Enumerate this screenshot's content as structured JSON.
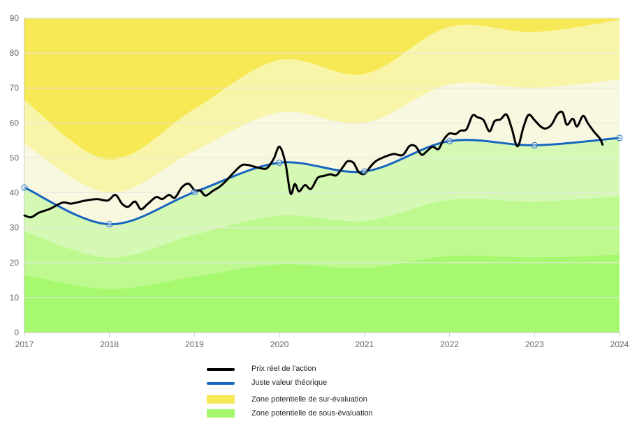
{
  "chart_data": {
    "type": "line",
    "x_ticks": [
      "2017",
      "2018",
      "2019",
      "2020",
      "2021",
      "2022",
      "2023",
      "2024"
    ],
    "y_ticks": [
      "0",
      "10",
      "20",
      "30",
      "40",
      "50",
      "60",
      "70",
      "80",
      "90"
    ],
    "xlim": [
      2017,
      2024
    ],
    "ylim": [
      0,
      90
    ],
    "grid": true,
    "legend_position": "bottom",
    "fair_value_markers": {
      "x": [
        2017,
        2018,
        2019,
        2020,
        2021,
        2022,
        2023,
        2024
      ],
      "y": [
        41.5,
        31.0,
        40.2,
        48.6,
        46.1,
        54.8,
        53.6,
        55.7
      ]
    },
    "bands": {
      "x": [
        2017,
        2018,
        2019,
        2020,
        2021,
        2022,
        2023,
        2024
      ],
      "upper_boundaries": [
        [
          41.5,
          31.0,
          40.2,
          48.6,
          46.1,
          54.8,
          53.6,
          55.7
        ],
        [
          54,
          40,
          52,
          63,
          60,
          71,
          70,
          72.5
        ],
        [
          66.5,
          49.5,
          64,
          78,
          74,
          87.5,
          86,
          89.5
        ],
        [
          90,
          90,
          90,
          90,
          90,
          90,
          90,
          90
        ]
      ],
      "lower_boundaries": [
        [
          41.5,
          31.0,
          40.2,
          48.6,
          46.1,
          54.8,
          53.6,
          55.7
        ],
        [
          29,
          21.5,
          28,
          33.5,
          32,
          38,
          37.5,
          39
        ],
        [
          16.5,
          12.5,
          16,
          19.5,
          18.5,
          22,
          21.5,
          22.3
        ],
        [
          0,
          0,
          0,
          0,
          0,
          0,
          0,
          0
        ]
      ]
    },
    "series": [
      {
        "name": "Prix réel de l'action",
        "x": [
          2017.0,
          2017.08,
          2017.17,
          2017.3,
          2017.45,
          2017.55,
          2017.7,
          2017.85,
          2017.98,
          2018.07,
          2018.15,
          2018.22,
          2018.3,
          2018.37,
          2018.45,
          2018.55,
          2018.62,
          2018.7,
          2018.77,
          2018.85,
          2018.93,
          2019.0,
          2019.07,
          2019.13,
          2019.22,
          2019.3,
          2019.38,
          2019.45,
          2019.55,
          2019.62,
          2019.7,
          2019.77,
          2019.85,
          2019.93,
          2020.0,
          2020.07,
          2020.13,
          2020.18,
          2020.23,
          2020.3,
          2020.37,
          2020.45,
          2020.52,
          2020.6,
          2020.67,
          2020.75,
          2020.8,
          2020.87,
          2020.93,
          2021.0,
          2021.07,
          2021.13,
          2021.2,
          2021.27,
          2021.35,
          2021.45,
          2021.53,
          2021.6,
          2021.67,
          2021.73,
          2021.8,
          2021.87,
          2021.93,
          2022.0,
          2022.07,
          2022.13,
          2022.2,
          2022.27,
          2022.33,
          2022.4,
          2022.47,
          2022.53,
          2022.6,
          2022.67,
          2022.73,
          2022.8,
          2022.87,
          2022.93,
          2023.0,
          2023.07,
          2023.13,
          2023.2,
          2023.27,
          2023.33,
          2023.38,
          2023.45,
          2023.5,
          2023.57,
          2023.63,
          2023.7,
          2023.77,
          2023.8
        ],
        "y": [
          33.5,
          33,
          34.3,
          35.4,
          37.2,
          36.9,
          37.7,
          38.2,
          37.8,
          39.4,
          36.8,
          36,
          37.5,
          35.3,
          36.8,
          38.8,
          38.2,
          39.4,
          38.6,
          41.5,
          42.6,
          40.8,
          40.6,
          39.2,
          40.6,
          41.8,
          43.6,
          45.5,
          47.8,
          48,
          47.5,
          47.1,
          47,
          49.6,
          53.2,
          48.5,
          39.8,
          42.5,
          40.4,
          42.2,
          41.1,
          44.3,
          44.8,
          45.3,
          45,
          47.5,
          49,
          48.6,
          46,
          45.4,
          47.5,
          49,
          49.9,
          50.6,
          51.1,
          50.8,
          53.4,
          53.3,
          50.9,
          51.8,
          53.2,
          52.5,
          55.2,
          57,
          56.8,
          57.8,
          58.2,
          62.1,
          61.6,
          60.8,
          57.6,
          60.5,
          61,
          62.4,
          58.6,
          53.3,
          58.8,
          62.3,
          60.8,
          59,
          58.4,
          59.5,
          62.5,
          63,
          59.5,
          61.2,
          59,
          62,
          59.8,
          57.5,
          55.5,
          53.8
        ],
        "color": "#000000"
      },
      {
        "name": "Juste valeur théorique",
        "x": [
          2017,
          2018,
          2019,
          2020,
          2021,
          2022,
          2023,
          2024
        ],
        "y": [
          41.5,
          31.0,
          40.2,
          48.6,
          46.1,
          54.8,
          53.6,
          55.7
        ],
        "color": "#1565c0"
      }
    ],
    "colors": {
      "over_bands": [
        "#f8f7df",
        "#f9f5a8",
        "#f6e955"
      ],
      "under_bands": [
        "#d5f9b5",
        "#bdf98f",
        "#a6f86f"
      ],
      "grid": "#e6e6e6",
      "axis": "#cccccc",
      "fair_value": "#1565c0",
      "price": "#000000"
    }
  },
  "legend": {
    "items": [
      {
        "label": "Prix réel de l'action",
        "color": "#000000",
        "kind": "line"
      },
      {
        "label": "Juste valeur théorique",
        "color": "#1565c0",
        "kind": "line"
      },
      {
        "label": "Zone potentielle de sur-évaluation",
        "color": "#f6e955",
        "kind": "box"
      },
      {
        "label": "Zone potentielle de sous-évaluation",
        "color": "#a6f86f",
        "kind": "box"
      }
    ]
  }
}
